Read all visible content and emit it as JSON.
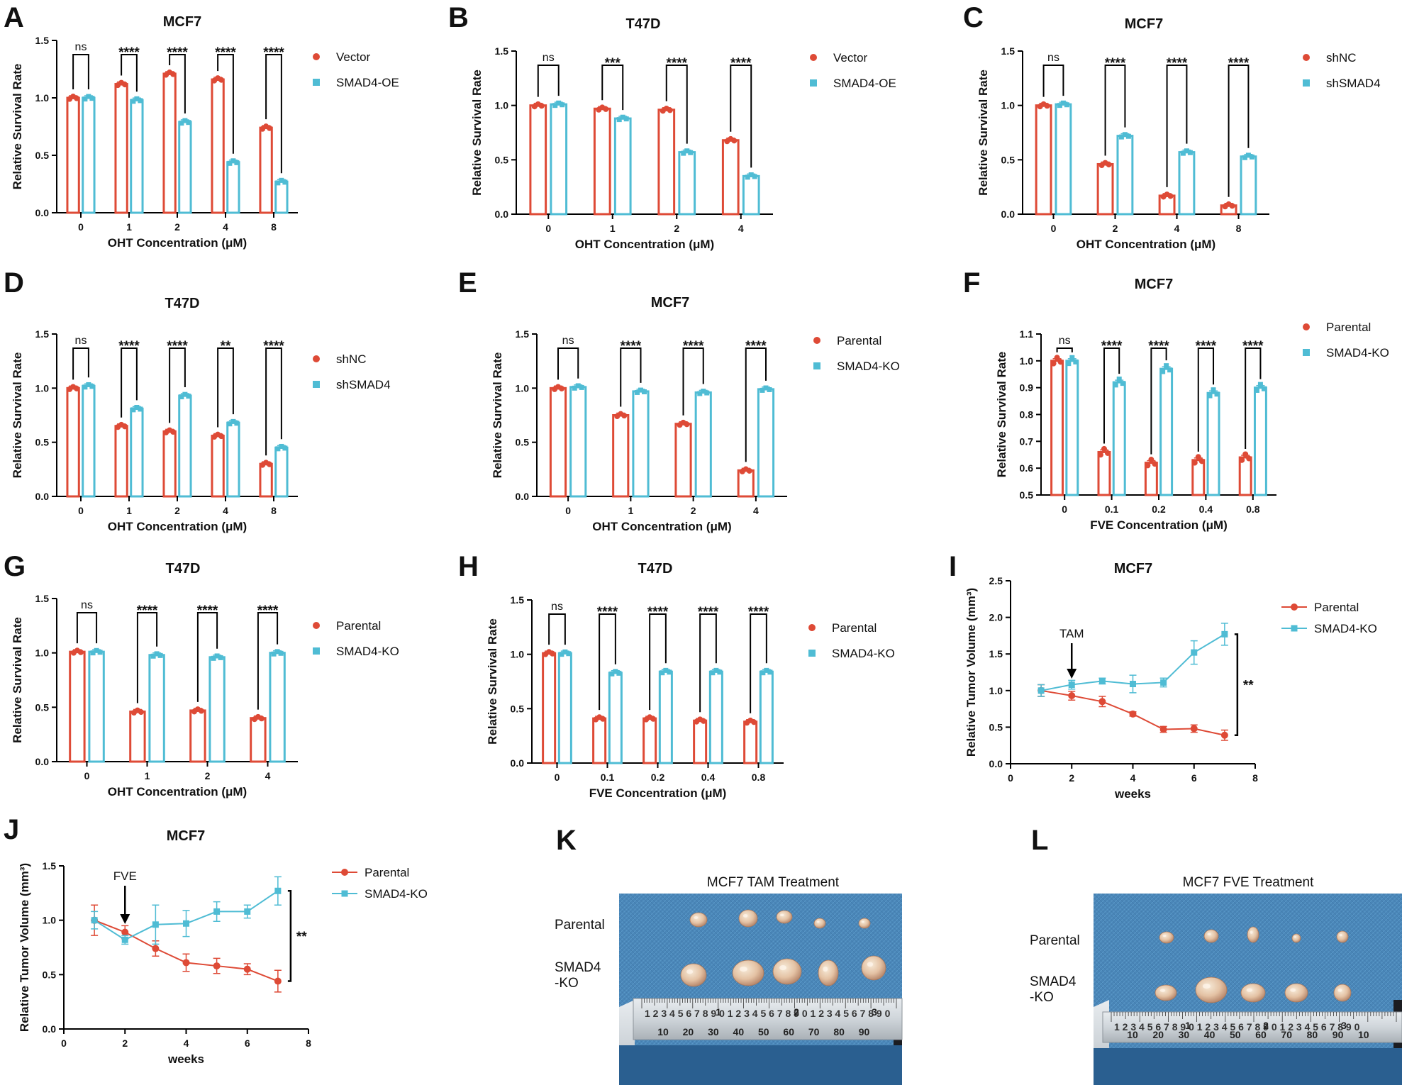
{
  "colors": {
    "red": "#de4a36",
    "cyan": "#4fbcd4"
  },
  "chart_data": [
    {
      "id": "A",
      "type": "bar",
      "title": "MCF7",
      "xlabel": "OHT Concentration (μM)",
      "ylabel": "Relative Survival Rate",
      "categories": [
        "0",
        "1",
        "2",
        "4",
        "8"
      ],
      "ylim": [
        0,
        1.5
      ],
      "yticks": [
        "0.0",
        "0.5",
        "1.0",
        "1.5"
      ],
      "series": [
        {
          "name": "Vector",
          "values": [
            1.0,
            1.12,
            1.21,
            1.16,
            0.74
          ]
        },
        {
          "name": "SMAD4-OE",
          "values": [
            1.0,
            0.98,
            0.79,
            0.44,
            0.27
          ]
        }
      ],
      "significance": [
        "ns",
        "****",
        "****",
        "****",
        "****"
      ]
    },
    {
      "id": "B",
      "type": "bar",
      "title": "T47D",
      "xlabel": "OHT Concentration (μM)",
      "ylabel": "Relative Survival Rate",
      "categories": [
        "0",
        "1",
        "2",
        "4"
      ],
      "ylim": [
        0,
        1.5
      ],
      "yticks": [
        "0.0",
        "0.5",
        "1.0",
        "1.5"
      ],
      "series": [
        {
          "name": "Vector",
          "values": [
            1.0,
            0.97,
            0.96,
            0.68
          ]
        },
        {
          "name": "SMAD4-OE",
          "values": [
            1.01,
            0.88,
            0.57,
            0.35
          ]
        }
      ],
      "significance": [
        "ns",
        "***",
        "****",
        "****"
      ]
    },
    {
      "id": "C",
      "type": "bar",
      "title": "MCF7",
      "xlabel": "OHT Concentration (μM)",
      "ylabel": "Relative Survival Rate",
      "categories": [
        "0",
        "2",
        "4",
        "8"
      ],
      "ylim": [
        0,
        1.5
      ],
      "yticks": [
        "0.0",
        "0.5",
        "1.0",
        "1.5"
      ],
      "series": [
        {
          "name": "shNC",
          "values": [
            1.0,
            0.46,
            0.17,
            0.08
          ]
        },
        {
          "name": "shSMAD4",
          "values": [
            1.01,
            0.72,
            0.57,
            0.53
          ]
        }
      ],
      "significance": [
        "ns",
        "****",
        "****",
        "****"
      ]
    },
    {
      "id": "D",
      "type": "bar",
      "title": "T47D",
      "xlabel": "OHT Concentration (μM)",
      "ylabel": "Relative Survival Rate",
      "categories": [
        "0",
        "1",
        "2",
        "4",
        "8"
      ],
      "ylim": [
        0,
        1.5
      ],
      "yticks": [
        "0.0",
        "0.5",
        "1.0",
        "1.5"
      ],
      "series": [
        {
          "name": "shNC",
          "values": [
            1.0,
            0.65,
            0.6,
            0.56,
            0.3
          ]
        },
        {
          "name": "shSMAD4",
          "values": [
            1.02,
            0.81,
            0.93,
            0.68,
            0.45
          ]
        }
      ],
      "significance": [
        "ns",
        "****",
        "****",
        "**",
        "****"
      ]
    },
    {
      "id": "E",
      "type": "bar",
      "title": "MCF7",
      "xlabel": "OHT Concentration (μM)",
      "ylabel": "Relative Survival Rate",
      "categories": [
        "0",
        "1",
        "2",
        "4"
      ],
      "ylim": [
        0,
        1.5
      ],
      "yticks": [
        "0.0",
        "0.5",
        "1.0",
        "1.5"
      ],
      "series": [
        {
          "name": "Parental",
          "values": [
            1.0,
            0.75,
            0.67,
            0.24
          ]
        },
        {
          "name": "SMAD4-KO",
          "values": [
            1.01,
            0.97,
            0.96,
            0.99
          ]
        }
      ],
      "significance": [
        "ns",
        "****",
        "****",
        "****"
      ]
    },
    {
      "id": "F",
      "type": "bar",
      "title": "MCF7",
      "xlabel": "FVE Concentration (μM)",
      "ylabel": "Relative Survival Rate",
      "categories": [
        "0",
        "0.1",
        "0.2",
        "0.4",
        "0.8"
      ],
      "ylim": [
        0.5,
        1.1
      ],
      "yticks": [
        "0.5",
        "0.6",
        "0.7",
        "0.8",
        "0.9",
        "1.0",
        "1.1"
      ],
      "series": [
        {
          "name": "Parental",
          "values": [
            1.0,
            0.66,
            0.62,
            0.63,
            0.64
          ]
        },
        {
          "name": "SMAD4-KO",
          "values": [
            1.0,
            0.92,
            0.97,
            0.88,
            0.9
          ]
        }
      ],
      "significance": [
        "ns",
        "****",
        "****",
        "****",
        "****"
      ]
    },
    {
      "id": "G",
      "type": "bar",
      "title": "T47D",
      "xlabel": "OHT Concentration (μM)",
      "ylabel": "Relative Survival Rate",
      "categories": [
        "0",
        "1",
        "2",
        "4"
      ],
      "ylim": [
        0,
        1.5
      ],
      "yticks": [
        "0.0",
        "0.5",
        "1.0",
        "1.5"
      ],
      "series": [
        {
          "name": "Parental",
          "values": [
            1.01,
            0.46,
            0.47,
            0.4
          ]
        },
        {
          "name": "SMAD4-KO",
          "values": [
            1.01,
            0.98,
            0.96,
            1.0
          ]
        }
      ],
      "significance": [
        "ns",
        "****",
        "****",
        "****"
      ]
    },
    {
      "id": "H",
      "type": "bar",
      "title": "T47D",
      "xlabel": "FVE Concentration (μM)",
      "ylabel": "Relative Survival Rate",
      "categories": [
        "0",
        "0.1",
        "0.2",
        "0.4",
        "0.8"
      ],
      "ylim": [
        0,
        1.5
      ],
      "yticks": [
        "0.0",
        "0.5",
        "1.0",
        "1.5"
      ],
      "series": [
        {
          "name": "Parental",
          "values": [
            1.01,
            0.41,
            0.41,
            0.39,
            0.38
          ]
        },
        {
          "name": "SMAD4-KO",
          "values": [
            1.01,
            0.83,
            0.84,
            0.84,
            0.84
          ]
        }
      ],
      "significance": [
        "ns",
        "****",
        "****",
        "****",
        "****"
      ]
    },
    {
      "id": "I",
      "type": "line",
      "title": "MCF7",
      "xlabel": "weeks",
      "ylabel": "Relative Tumor Volume (mm³)",
      "xlim": [
        0,
        8
      ],
      "xticks": [
        "0",
        "2",
        "4",
        "6",
        "8"
      ],
      "ylim": [
        0,
        2.5
      ],
      "yticks": [
        "0.0",
        "0.5",
        "1.0",
        "1.5",
        "2.0",
        "2.5"
      ],
      "x": [
        1,
        2,
        3,
        4,
        5,
        6,
        7
      ],
      "series": [
        {
          "name": "Parental",
          "values": [
            1.0,
            0.93,
            0.85,
            0.68,
            0.47,
            0.48,
            0.39
          ],
          "err": [
            0.08,
            0.06,
            0.07,
            0.03,
            0.04,
            0.05,
            0.07
          ]
        },
        {
          "name": "SMAD4-KO",
          "values": [
            1.0,
            1.08,
            1.13,
            1.09,
            1.11,
            1.52,
            1.77
          ],
          "err": [
            0.08,
            0.06,
            0.04,
            0.12,
            0.06,
            0.16,
            0.15
          ]
        }
      ],
      "annotation": "TAM",
      "annotation_x": 2,
      "significance": "**"
    },
    {
      "id": "J",
      "type": "line",
      "title": "MCF7",
      "xlabel": "weeks",
      "ylabel": "Relative Tumor Volume (mm³)",
      "xlim": [
        0,
        8
      ],
      "xticks": [
        "0",
        "2",
        "4",
        "6",
        "8"
      ],
      "ylim": [
        0,
        1.5
      ],
      "yticks": [
        "0.0",
        "0.5",
        "1.0",
        "1.5"
      ],
      "x": [
        1,
        2,
        3,
        4,
        5,
        6,
        7
      ],
      "series": [
        {
          "name": "Parental",
          "values": [
            1.0,
            0.89,
            0.74,
            0.61,
            0.58,
            0.55,
            0.44
          ],
          "err": [
            0.14,
            0.06,
            0.07,
            0.08,
            0.07,
            0.05,
            0.1
          ]
        },
        {
          "name": "SMAD4-KO",
          "values": [
            1.0,
            0.82,
            0.96,
            0.97,
            1.08,
            1.08,
            1.27
          ],
          "err": [
            0.08,
            0.04,
            0.18,
            0.12,
            0.09,
            0.06,
            0.13
          ]
        }
      ],
      "annotation": "FVE",
      "annotation_x": 2,
      "significance": "**"
    }
  ],
  "photos": [
    {
      "id": "K",
      "title": "MCF7 TAM Treatment",
      "row1_label": "Parental",
      "row2_label_line1": "SMAD4",
      "row2_label_line2": "-KO",
      "ruler_digits": "1 2 3 4 5 6 7 8 9 0 1 2 3 4 5 6 7 8 9 0 1 2 3 4 5 6 7 8 9 0",
      "ruler_numbers": [
        "10",
        "20",
        "30",
        "40",
        "50",
        "60",
        "70",
        "80",
        "90"
      ],
      "ruler_major": [
        "1",
        "2",
        "3"
      ]
    },
    {
      "id": "L",
      "title": "MCF7 FVE Treatment",
      "row1_label": "Parental",
      "row2_label_line1": "SMAD4",
      "row2_label_line2": "-KO",
      "ruler_digits": "1 2 3 4 5 6 7 8 9 0 1 2 3 4 5 6 7 8 9 0 1 2 3 4 5 6 7 8 9 0",
      "ruler_numbers": [
        "10",
        "20",
        "30",
        "40",
        "50",
        "60",
        "70",
        "80",
        "90",
        "10"
      ],
      "ruler_major": [
        "1",
        "2",
        "3"
      ]
    }
  ]
}
